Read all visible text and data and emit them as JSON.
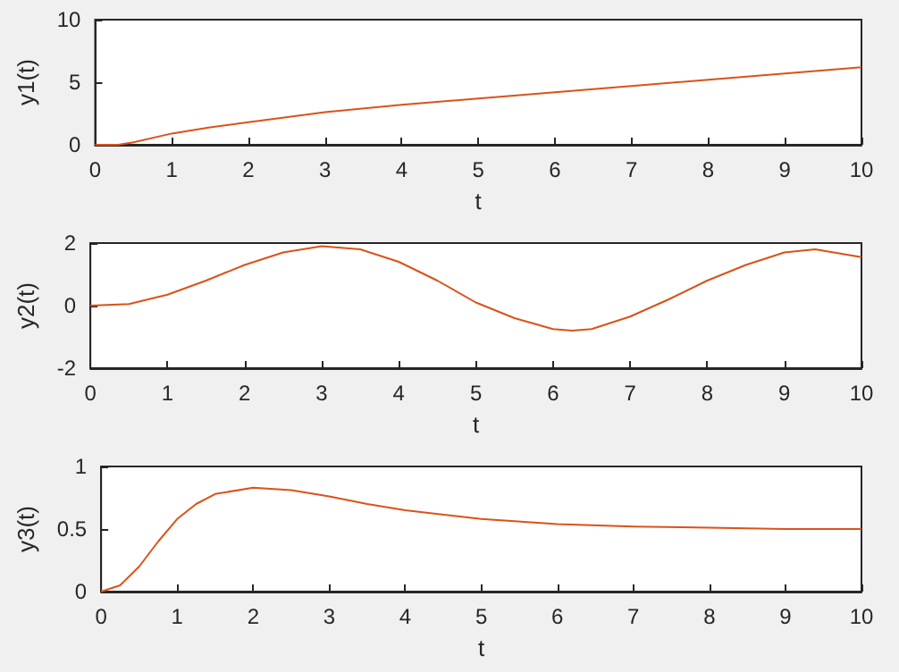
{
  "chart_data": [
    {
      "type": "line",
      "xlabel": "t",
      "ylabel": "y1(t)",
      "color": "#d95319",
      "xlim": [
        0,
        10
      ],
      "xticks": [
        0,
        1,
        2,
        3,
        4,
        5,
        6,
        7,
        8,
        9,
        10
      ],
      "ylim": [
        0,
        10
      ],
      "yticks": [
        0,
        5,
        10
      ],
      "x": [
        0,
        0.3,
        0.5,
        1,
        1.5,
        2,
        3,
        4,
        5,
        6,
        7,
        8,
        9,
        10
      ],
      "values": [
        0,
        0,
        0.2,
        0.9,
        1.4,
        1.8,
        2.6,
        3.2,
        3.7,
        4.2,
        4.7,
        5.2,
        5.7,
        6.2
      ]
    },
    {
      "type": "line",
      "xlabel": "t",
      "ylabel": "y2(t)",
      "color": "#d95319",
      "xlim": [
        0,
        10
      ],
      "xticks": [
        0,
        1,
        2,
        3,
        4,
        5,
        6,
        7,
        8,
        9,
        10
      ],
      "ylim": [
        -2,
        2
      ],
      "yticks": [
        -2,
        0,
        2
      ],
      "x": [
        0,
        0.5,
        1,
        1.5,
        2,
        2.5,
        3,
        3.5,
        4,
        4.5,
        5,
        5.5,
        6,
        6.25,
        6.5,
        7,
        7.5,
        8,
        8.5,
        9,
        9.4,
        10
      ],
      "values": [
        0,
        0.05,
        0.35,
        0.8,
        1.3,
        1.7,
        1.9,
        1.8,
        1.4,
        0.8,
        0.1,
        -0.4,
        -0.75,
        -0.8,
        -0.75,
        -0.35,
        0.2,
        0.8,
        1.3,
        1.7,
        1.8,
        1.55
      ]
    },
    {
      "type": "line",
      "xlabel": "t",
      "ylabel": "y3(t)",
      "color": "#d95319",
      "xlim": [
        0,
        10
      ],
      "xticks": [
        0,
        1,
        2,
        3,
        4,
        5,
        6,
        7,
        8,
        9,
        10
      ],
      "ylim": [
        0,
        1
      ],
      "yticks": [
        0,
        0.5,
        1
      ],
      "x": [
        0,
        0.25,
        0.5,
        0.75,
        1,
        1.25,
        1.5,
        2,
        2.5,
        3,
        3.5,
        4,
        5,
        6,
        7,
        8,
        9,
        10
      ],
      "values": [
        0,
        0.05,
        0.2,
        0.4,
        0.58,
        0.7,
        0.78,
        0.83,
        0.81,
        0.76,
        0.7,
        0.65,
        0.58,
        0.54,
        0.52,
        0.51,
        0.5,
        0.5
      ]
    }
  ]
}
